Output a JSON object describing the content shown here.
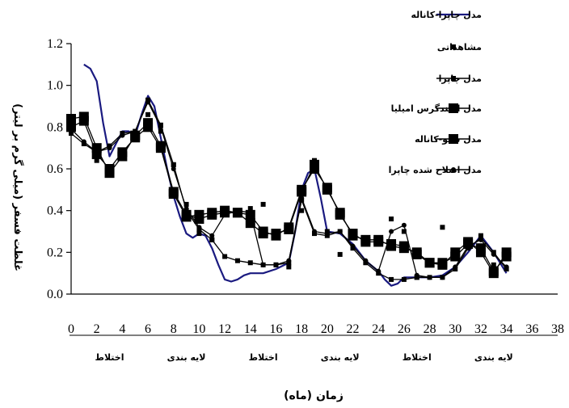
{
  "chart_data": {
    "type": "line",
    "xlabel": "زمان (ماه)",
    "ylabel": "غلظت فسفر (میلی گرم بر لیتر)",
    "xlim": [
      0,
      38
    ],
    "ylim": [
      0,
      1.2
    ],
    "x_ticks": [
      0,
      2,
      4,
      6,
      8,
      10,
      12,
      14,
      16,
      18,
      20,
      22,
      24,
      26,
      28,
      30,
      32,
      34,
      36,
      38
    ],
    "y_ticks": [
      0.0,
      0.2,
      0.4,
      0.6,
      0.8,
      1.0,
      1.2
    ],
    "y_tick_labels": [
      "0.0",
      "0.2",
      "0.4",
      "0.6",
      "0.8",
      "1.0",
      "1.2"
    ],
    "periods": [
      {
        "label": "اختلاط",
        "from": 0,
        "to": 6
      },
      {
        "label": "لایه بندی",
        "from": 6,
        "to": 12
      },
      {
        "label": "اختلاط",
        "from": 12,
        "to": 18
      },
      {
        "label": "لایه بندی",
        "from": 18,
        "to": 24
      },
      {
        "label": "اختلاط",
        "from": 24,
        "to": 30
      },
      {
        "label": "لایه بندی",
        "from": 30,
        "to": 36
      }
    ],
    "legend_position": "top-right",
    "series": [
      {
        "name": "مدل چاپرا-کاناله",
        "style": "line",
        "color": "#1a1a80",
        "x": [
          1,
          1.5,
          2,
          2.5,
          3,
          3.5,
          4,
          4.5,
          5,
          5.5,
          6,
          6.5,
          7,
          7.5,
          8,
          8.5,
          9,
          9.5,
          10,
          10.5,
          11,
          11.5,
          12,
          12.5,
          13,
          13.5,
          14,
          15,
          16,
          17,
          17.5,
          18,
          18.5,
          19,
          19.5,
          20,
          21,
          22,
          23,
          24,
          24.5,
          25,
          25.5,
          26,
          27,
          28,
          29,
          30,
          31,
          32,
          33,
          34
        ],
        "y": [
          1.1,
          1.08,
          1.02,
          0.82,
          0.66,
          0.72,
          0.78,
          0.78,
          0.76,
          0.86,
          0.95,
          0.9,
          0.75,
          0.6,
          0.47,
          0.37,
          0.29,
          0.27,
          0.29,
          0.28,
          0.22,
          0.14,
          0.07,
          0.06,
          0.07,
          0.09,
          0.1,
          0.1,
          0.12,
          0.15,
          0.3,
          0.5,
          0.58,
          0.6,
          0.46,
          0.3,
          0.29,
          0.24,
          0.16,
          0.11,
          0.07,
          0.04,
          0.05,
          0.08,
          0.08,
          0.08,
          0.09,
          0.13,
          0.2,
          0.28,
          0.2,
          0.1
        ]
      },
      {
        "name": "مشاهداتی",
        "style": "markers",
        "marker": "small-square",
        "color": "#000000",
        "x": [
          2,
          3,
          6,
          7,
          8,
          9,
          10,
          11,
          14,
          15,
          16,
          17,
          18,
          19,
          20,
          21,
          22,
          23,
          24,
          25,
          26,
          27,
          29,
          31,
          32,
          33
        ],
        "y": [
          0.64,
          0.58,
          0.86,
          0.78,
          0.62,
          0.43,
          0.29,
          0.26,
          0.41,
          0.43,
          0.14,
          0.13,
          0.4,
          0.64,
          0.3,
          0.19,
          0.28,
          0.27,
          0.25,
          0.36,
          0.3,
          0.08,
          0.32,
          0.23,
          0.28,
          0.14
        ]
      },
      {
        "name": "مدل چاپرا",
        "style": "line-markers",
        "marker": "small-square",
        "color": "#000000",
        "x": [
          0,
          1,
          2,
          3,
          4,
          5,
          6,
          7,
          8,
          9,
          10,
          11,
          12,
          13,
          14,
          15,
          16,
          17,
          18,
          19,
          20,
          21,
          22,
          23,
          24,
          25,
          26,
          27,
          28,
          29,
          30,
          31,
          32,
          33,
          34
        ],
        "y": [
          0.77,
          0.72,
          0.68,
          0.71,
          0.77,
          0.78,
          0.93,
          0.81,
          0.62,
          0.4,
          0.31,
          0.26,
          0.18,
          0.16,
          0.15,
          0.14,
          0.14,
          0.15,
          0.45,
          0.29,
          0.28,
          0.3,
          0.22,
          0.15,
          0.1,
          0.07,
          0.07,
          0.08,
          0.08,
          0.08,
          0.12,
          0.22,
          0.27,
          0.2,
          0.12
        ]
      },
      {
        "name": "مدل اسندگرس امیلیا",
        "style": "line-markers",
        "marker": "large-square",
        "color": "#000000",
        "x": [
          0,
          1,
          2,
          3,
          4,
          5,
          6,
          7,
          8,
          9,
          10,
          11,
          12,
          13,
          14,
          15,
          16,
          17,
          18,
          19,
          20,
          21,
          22,
          23,
          24,
          25,
          26,
          27,
          28,
          29,
          30,
          31,
          32,
          33,
          34
        ],
        "y": [
          0.84,
          0.85,
          0.7,
          0.58,
          0.66,
          0.76,
          0.82,
          0.71,
          0.49,
          0.38,
          0.36,
          0.38,
          0.39,
          0.39,
          0.34,
          0.29,
          0.29,
          0.31,
          0.49,
          0.62,
          0.5,
          0.39,
          0.28,
          0.26,
          0.26,
          0.23,
          0.22,
          0.2,
          0.15,
          0.14,
          0.2,
          0.25,
          0.2,
          0.1,
          0.2
        ]
      },
      {
        "name": "مدل سیو-کاناله",
        "style": "line-markers",
        "marker": "large-square",
        "color": "#000000",
        "x": [
          0,
          1,
          2,
          3,
          4,
          5,
          6,
          7,
          8,
          9,
          10,
          11,
          12,
          13,
          14,
          15,
          16,
          17,
          18,
          19,
          20,
          21,
          22,
          23,
          24,
          25,
          26,
          27,
          28,
          29,
          30,
          31,
          32,
          33,
          34
        ],
        "y": [
          0.8,
          0.83,
          0.67,
          0.6,
          0.68,
          0.75,
          0.8,
          0.7,
          0.48,
          0.37,
          0.38,
          0.39,
          0.4,
          0.39,
          0.38,
          0.3,
          0.28,
          0.32,
          0.5,
          0.6,
          0.51,
          0.38,
          0.29,
          0.25,
          0.25,
          0.24,
          0.23,
          0.19,
          0.15,
          0.15,
          0.18,
          0.24,
          0.22,
          0.11,
          0.18
        ]
      },
      {
        "name": "مدل اصلاح شده چاپرا",
        "style": "line-markers",
        "marker": "circle",
        "color": "#000000",
        "x": [
          0,
          1,
          2,
          3,
          4,
          5,
          6,
          7,
          8,
          9,
          10,
          11,
          12,
          13,
          14,
          15,
          16,
          17,
          18,
          19,
          20,
          21,
          22,
          23,
          24,
          25,
          26,
          27,
          28,
          29,
          30,
          31,
          32,
          33,
          34
        ],
        "y": [
          0.79,
          0.73,
          0.68,
          0.7,
          0.76,
          0.78,
          0.92,
          0.8,
          0.6,
          0.41,
          0.32,
          0.28,
          0.38,
          0.4,
          0.39,
          0.14,
          0.14,
          0.16,
          0.46,
          0.3,
          0.29,
          0.3,
          0.23,
          0.16,
          0.11,
          0.3,
          0.33,
          0.09,
          0.08,
          0.08,
          0.13,
          0.23,
          0.26,
          0.19,
          0.13
        ]
      }
    ]
  }
}
